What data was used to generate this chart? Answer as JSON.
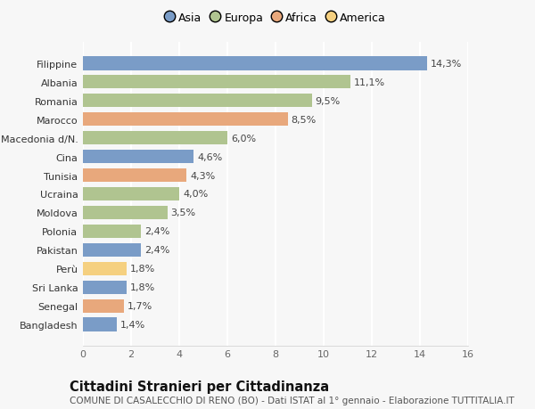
{
  "categories": [
    "Bangladesh",
    "Senegal",
    "Sri Lanka",
    "Perù",
    "Pakistan",
    "Polonia",
    "Moldova",
    "Ucraina",
    "Tunisia",
    "Cina",
    "Macedonia d/N.",
    "Marocco",
    "Romania",
    "Albania",
    "Filippine"
  ],
  "values": [
    1.4,
    1.7,
    1.8,
    1.8,
    2.4,
    2.4,
    3.5,
    4.0,
    4.3,
    4.6,
    6.0,
    8.5,
    9.5,
    11.1,
    14.3
  ],
  "labels": [
    "1,4%",
    "1,7%",
    "1,8%",
    "1,8%",
    "2,4%",
    "2,4%",
    "3,5%",
    "4,0%",
    "4,3%",
    "4,6%",
    "6,0%",
    "8,5%",
    "9,5%",
    "11,1%",
    "14,3%"
  ],
  "colors": [
    "#7a9cc7",
    "#e8a87c",
    "#7a9cc7",
    "#f5d080",
    "#7a9cc7",
    "#b0c490",
    "#b0c490",
    "#b0c490",
    "#e8a87c",
    "#7a9cc7",
    "#b0c490",
    "#e8a87c",
    "#b0c490",
    "#b0c490",
    "#7a9cc7"
  ],
  "continent_colors": {
    "Asia": "#7a9cc7",
    "Europa": "#b0c490",
    "Africa": "#e8a87c",
    "America": "#f5d080"
  },
  "xlim": [
    0,
    16
  ],
  "xticks": [
    0,
    2,
    4,
    6,
    8,
    10,
    12,
    14,
    16
  ],
  "title": "Cittadini Stranieri per Cittadinanza",
  "subtitle": "COMUNE DI CASALECCHIO DI RENO (BO) - Dati ISTAT al 1° gennaio - Elaborazione TUTTITALIA.IT",
  "background_color": "#f7f7f7",
  "grid_color": "#ffffff",
  "bar_height": 0.75,
  "label_fontsize": 8,
  "tick_fontsize": 8,
  "title_fontsize": 10.5,
  "subtitle_fontsize": 7.5
}
